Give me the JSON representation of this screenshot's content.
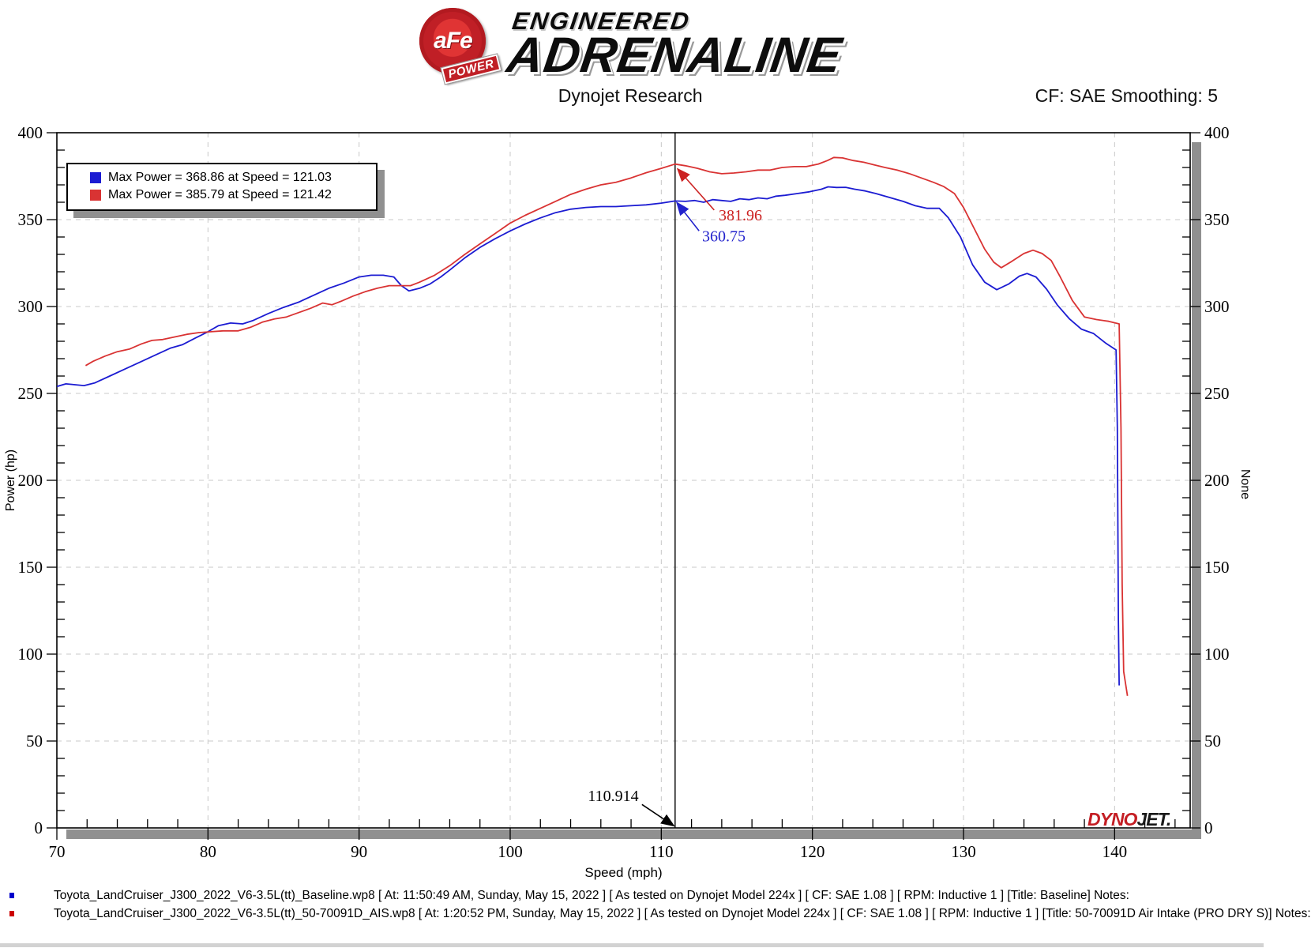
{
  "header": {
    "brand": {
      "afe_text": "aFe",
      "power_text": "POWER",
      "line1": "ENGINEERED",
      "line2": "ADRENALINE"
    },
    "subtitle_left": "Dynojet Research",
    "subtitle_right": "CF: SAE Smoothing: 5"
  },
  "chart_data": {
    "type": "line",
    "title": "Dynojet Research",
    "xlabel": "Speed (mph)",
    "ylabel_left": "Power (hp)",
    "ylabel_right": "None",
    "xlim": [
      70,
      145
    ],
    "ylim": [
      0,
      400
    ],
    "x_major_ticks": [
      70,
      80,
      90,
      100,
      110,
      120,
      130,
      140
    ],
    "x_minor_step": 2,
    "y_major_ticks": [
      0,
      50,
      100,
      150,
      200,
      250,
      300,
      350,
      400
    ],
    "y_minor_step": 10,
    "grid": "dashed",
    "legend_position": "top-left",
    "grid_color": "#c8c8c8",
    "cursor": {
      "x": 110.914,
      "label": "110.914"
    },
    "watermark": {
      "part1": "DYNO",
      "part2": "JET."
    },
    "series": [
      {
        "name": "Baseline",
        "color": "#1c1cd2",
        "legend": "Max Power = 368.86 at Speed = 121.03",
        "max_power": 368.86,
        "max_speed": 121.03,
        "points": [
          [
            70,
            254
          ],
          [
            70.6,
            255.5
          ],
          [
            71.2,
            255
          ],
          [
            71.8,
            254.5
          ],
          [
            72.5,
            256
          ],
          [
            73.5,
            260
          ],
          [
            74.5,
            264
          ],
          [
            75.5,
            268
          ],
          [
            76.5,
            272
          ],
          [
            77.5,
            276
          ],
          [
            78.3,
            278
          ],
          [
            79.2,
            282
          ],
          [
            80,
            285.5
          ],
          [
            80.7,
            289
          ],
          [
            81.5,
            290.5
          ],
          [
            82.3,
            290
          ],
          [
            83,
            292
          ],
          [
            84,
            296
          ],
          [
            85,
            299.5
          ],
          [
            86,
            302.5
          ],
          [
            87,
            306.5
          ],
          [
            88,
            310.5
          ],
          [
            89,
            313.5
          ],
          [
            90,
            317
          ],
          [
            90.8,
            318
          ],
          [
            91.6,
            318
          ],
          [
            92.3,
            317
          ],
          [
            92.8,
            312
          ],
          [
            93.3,
            309
          ],
          [
            94,
            310.5
          ],
          [
            94.7,
            313
          ],
          [
            95.4,
            317
          ],
          [
            96,
            321
          ],
          [
            97,
            328
          ],
          [
            98,
            334
          ],
          [
            99,
            339
          ],
          [
            100,
            343.5
          ],
          [
            101,
            347.5
          ],
          [
            102,
            351
          ],
          [
            103,
            354
          ],
          [
            104,
            356
          ],
          [
            105,
            357
          ],
          [
            106,
            357.5
          ],
          [
            107,
            357.5
          ],
          [
            108,
            358
          ],
          [
            109,
            358.5
          ],
          [
            110,
            359.5
          ],
          [
            110.914,
            360.75
          ],
          [
            111.6,
            360.5
          ],
          [
            112.2,
            361
          ],
          [
            112.8,
            360
          ],
          [
            113.4,
            361.5
          ],
          [
            114,
            361
          ],
          [
            114.6,
            360.5
          ],
          [
            115.2,
            362
          ],
          [
            115.8,
            361.5
          ],
          [
            116.4,
            362.5
          ],
          [
            117,
            362
          ],
          [
            117.6,
            363.5
          ],
          [
            118.2,
            364
          ],
          [
            119,
            365
          ],
          [
            119.8,
            366
          ],
          [
            120.6,
            367.5
          ],
          [
            121.03,
            368.86
          ],
          [
            121.6,
            368.5
          ],
          [
            122.2,
            368.6
          ],
          [
            122.8,
            367.5
          ],
          [
            123.5,
            366.5
          ],
          [
            124.2,
            365
          ],
          [
            125,
            363
          ],
          [
            126,
            360.5
          ],
          [
            126.8,
            358
          ],
          [
            127.6,
            356.5
          ],
          [
            128.4,
            356.5
          ],
          [
            129,
            351
          ],
          [
            129.8,
            340
          ],
          [
            130.6,
            324
          ],
          [
            131.4,
            314
          ],
          [
            132.2,
            309.7
          ],
          [
            133,
            313
          ],
          [
            133.7,
            317.5
          ],
          [
            134.2,
            319
          ],
          [
            134.8,
            317
          ],
          [
            135.5,
            310
          ],
          [
            136.2,
            301
          ],
          [
            137,
            293
          ],
          [
            137.8,
            287
          ],
          [
            138.6,
            284.5
          ],
          [
            139.4,
            279
          ],
          [
            140.1,
            275
          ],
          [
            140.18,
            230
          ],
          [
            140.25,
            120
          ],
          [
            140.3,
            82
          ]
        ]
      },
      {
        "name": "50-70091D Air Intake (PRO DRY S)",
        "color": "#d93333",
        "legend": "Max Power = 385.79 at Speed = 121.42",
        "max_power": 385.79,
        "max_speed": 121.42,
        "points": [
          [
            71.9,
            266
          ],
          [
            72.4,
            268.5
          ],
          [
            73.2,
            271.5
          ],
          [
            74,
            274
          ],
          [
            74.8,
            275.5
          ],
          [
            75.6,
            278.5
          ],
          [
            76.3,
            280.5
          ],
          [
            77,
            281
          ],
          [
            77.8,
            282.5
          ],
          [
            78.6,
            284
          ],
          [
            79.4,
            285
          ],
          [
            80.2,
            285.5
          ],
          [
            81,
            286
          ],
          [
            82,
            286
          ],
          [
            82.8,
            288
          ],
          [
            83.6,
            291
          ],
          [
            84.4,
            292.8
          ],
          [
            85.2,
            294
          ],
          [
            86,
            296.5
          ],
          [
            86.8,
            299
          ],
          [
            87.6,
            302
          ],
          [
            88.2,
            301
          ],
          [
            88.8,
            303
          ],
          [
            89.6,
            306
          ],
          [
            90.4,
            308.5
          ],
          [
            91.2,
            310.5
          ],
          [
            92,
            312
          ],
          [
            92.8,
            312
          ],
          [
            93.4,
            312
          ],
          [
            94,
            314
          ],
          [
            95,
            318
          ],
          [
            96,
            323.5
          ],
          [
            97,
            330
          ],
          [
            98,
            336
          ],
          [
            99,
            342
          ],
          [
            100,
            348
          ],
          [
            101,
            352.5
          ],
          [
            102,
            356.5
          ],
          [
            103,
            360.5
          ],
          [
            104,
            364.5
          ],
          [
            105,
            367.5
          ],
          [
            106,
            370
          ],
          [
            107,
            371.5
          ],
          [
            108,
            374
          ],
          [
            109,
            377
          ],
          [
            110,
            379.5
          ],
          [
            110.914,
            381.96
          ],
          [
            111.6,
            381
          ],
          [
            112.4,
            379.5
          ],
          [
            113.2,
            377.5
          ],
          [
            114,
            376.4
          ],
          [
            114.8,
            376.8
          ],
          [
            115.6,
            377.5
          ],
          [
            116.4,
            378.5
          ],
          [
            117.2,
            378.5
          ],
          [
            118,
            380
          ],
          [
            118.8,
            380.5
          ],
          [
            119.6,
            380.5
          ],
          [
            120.4,
            382
          ],
          [
            121,
            384
          ],
          [
            121.42,
            385.79
          ],
          [
            122,
            385.5
          ],
          [
            122.7,
            384
          ],
          [
            123.4,
            383
          ],
          [
            124.1,
            381.5
          ],
          [
            124.8,
            380
          ],
          [
            125.6,
            378.5
          ],
          [
            126.4,
            376.5
          ],
          [
            127.2,
            374
          ],
          [
            128,
            371.5
          ],
          [
            128.7,
            369
          ],
          [
            129.4,
            365
          ],
          [
            130,
            357
          ],
          [
            130.7,
            345
          ],
          [
            131.4,
            333
          ],
          [
            132,
            325.5
          ],
          [
            132.5,
            322.3
          ],
          [
            133.2,
            326
          ],
          [
            134,
            330.5
          ],
          [
            134.6,
            332.4
          ],
          [
            135.2,
            330.5
          ],
          [
            135.8,
            326.5
          ],
          [
            136.4,
            317
          ],
          [
            137.2,
            303.5
          ],
          [
            138,
            294
          ],
          [
            138.8,
            292.5
          ],
          [
            139.6,
            291.5
          ],
          [
            140.3,
            290
          ],
          [
            140.42,
            230
          ],
          [
            140.5,
            140
          ],
          [
            140.6,
            90
          ],
          [
            140.85,
            76
          ]
        ]
      }
    ],
    "annotations": [
      {
        "text": "381.96",
        "color": "#cc2222",
        "label": {
          "x": 113.8,
          "y": 349.5,
          "anchor": "start"
        },
        "arrow": {
          "from": [
            113.5,
            355.5
          ],
          "to": [
            111.08,
            379.2
          ]
        }
      },
      {
        "text": "360.75",
        "color": "#2222cc",
        "label": {
          "x": 112.7,
          "y": 337.5,
          "anchor": "start"
        },
        "arrow": {
          "from": [
            112.5,
            343.5
          ],
          "to": [
            111.03,
            359.8
          ]
        }
      },
      {
        "text": "110.914",
        "color": "#000000",
        "label": {
          "x": 108.5,
          "y": 15.5,
          "anchor": "end"
        },
        "arrow": {
          "from": [
            108.72,
            13.5
          ],
          "to": [
            110.83,
            1.2
          ]
        }
      }
    ]
  },
  "footer": {
    "runs": [
      {
        "marker_color": "#0000cc",
        "text": "Toyota_LandCruiser_J300_2022_V6-3.5L(tt)_Baseline.wp8 [ At: 11:50:49 AM, Sunday, May 15, 2022 ] [ As tested on Dynojet Model 224x ] [ CF: SAE 1.08 ] [ RPM: Inductive 1 ] [Title: Baseline]  Notes:"
      },
      {
        "marker_color": "#cc0000",
        "text": "Toyota_LandCruiser_J300_2022_V6-3.5L(tt)_50-70091D_AIS.wp8 [ At: 1:20:52 PM, Sunday, May 15, 2022 ] [ As tested on Dynojet Model 224x ] [ CF: SAE 1.08 ] [ RPM: Inductive 1 ] [Title: 50-70091D Air Intake (PRO DRY S)]  Notes:"
      }
    ]
  }
}
